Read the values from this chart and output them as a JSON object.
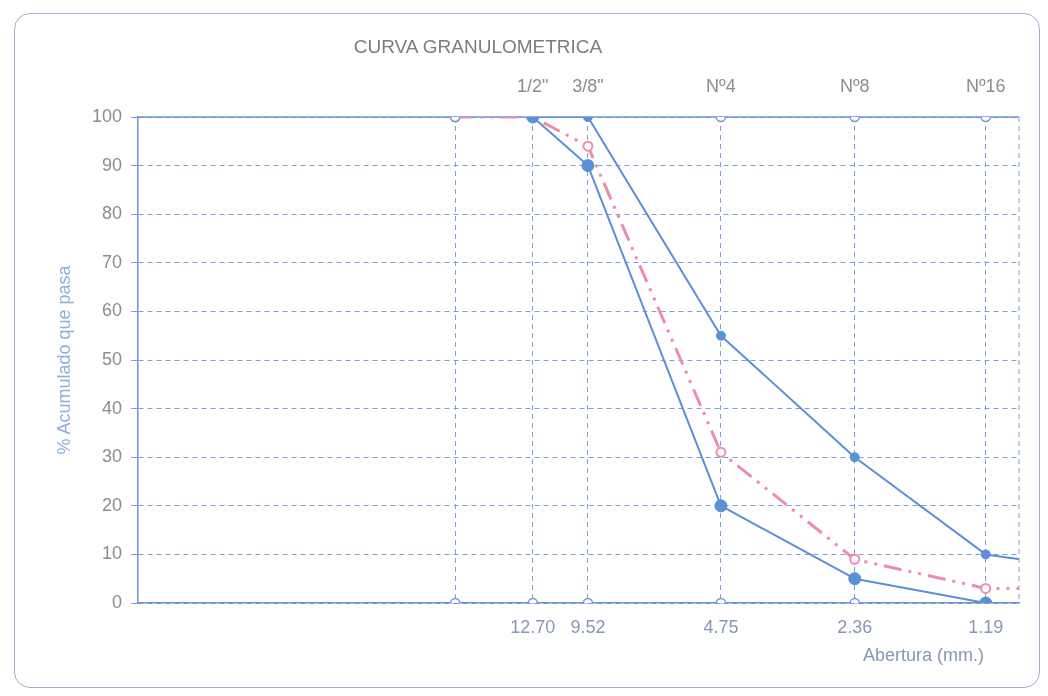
{
  "chart_data": {
    "type": "line",
    "title": "CURVA GRANULOMETRICA",
    "xlabel": "Abertura (mm.)",
    "ylabel": "% Acumulado que pasa",
    "log": "x",
    "xlim": [
      100,
      1
    ],
    "xticks": [
      {
        "value": 19.05,
        "label": null
      },
      {
        "value": 12.7,
        "label": "12.70"
      },
      9.52,
      4.75,
      2.36,
      1.19
    ],
    "ylim": [
      0,
      100
    ],
    "yticks": [
      0,
      10,
      20,
      30,
      40,
      50,
      60,
      70,
      80,
      90,
      100
    ],
    "grid": true,
    "marker": "circle",
    "annotations": [
      {
        "text": "1/2\"",
        "x": 12.7,
        "y": 100
      },
      {
        "text": "3/8\"",
        "x": 9.52,
        "y": 100
      },
      {
        "text": "Nº4",
        "x": 4.75,
        "y": 100
      },
      {
        "text": "Nº8",
        "x": 2.36,
        "y": 100
      },
      {
        "text": "Nº16",
        "x": 1.19,
        "y": 100
      }
    ],
    "series": [
      {
        "color": "#5b8fd6",
        "x": [
          12.7,
          9.52,
          4.75,
          2.36,
          1.19,
          1
        ],
        "values": [
          100,
          100,
          55,
          30,
          10,
          9
        ],
        "line_style": "solid"
      },
      {
        "color": "#5b8fd6",
        "x": [
          12.7,
          9.52,
          4.75,
          2.36,
          1.19,
          1
        ],
        "values": [
          100,
          90,
          20,
          5,
          0,
          0
        ],
        "line_style": "solid"
      },
      {
        "type": "scatter",
        "color": "#6d93d3",
        "x": [
          19.05,
          12.7,
          9.52,
          4.75,
          2.36
        ],
        "values": [
          0,
          0,
          0,
          0,
          0
        ]
      },
      {
        "type": "scatter",
        "color": "#6d93d3",
        "x": [
          19.05,
          4.75,
          2.36,
          1.19
        ],
        "values": [
          100,
          100,
          100,
          100
        ]
      },
      {
        "color": "#f08cab",
        "x": [
          19.05,
          12.7,
          9.52,
          4.75,
          2.36,
          1.19,
          1
        ],
        "values": [
          100,
          100,
          94,
          31,
          9,
          3,
          3
        ],
        "line_style": "dashed"
      }
    ]
  }
}
